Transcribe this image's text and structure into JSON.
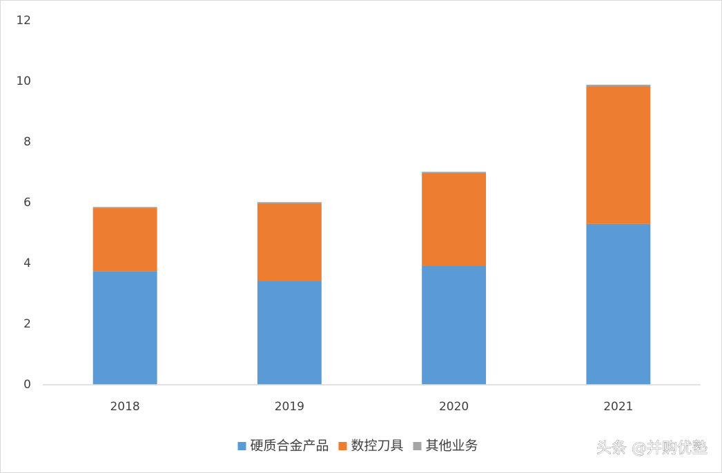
{
  "chart_data": {
    "type": "stacked_bar",
    "categories": [
      "2018",
      "2019",
      "2020",
      "2021"
    ],
    "series": [
      {
        "name": "硬质合金产品",
        "color": "#5b9bd5",
        "values": [
          3.73,
          3.43,
          3.93,
          5.3
        ]
      },
      {
        "name": "数控刀具",
        "color": "#ed7d31",
        "values": [
          2.09,
          2.55,
          3.05,
          4.54
        ]
      },
      {
        "name": "其他业务",
        "color": "#a5a5a5",
        "values": [
          0.04,
          0.04,
          0.04,
          0.05
        ]
      }
    ],
    "ylim": [
      0,
      12
    ],
    "yticks": [
      0,
      2,
      4,
      6,
      8,
      10,
      12
    ],
    "grid": false,
    "legend": "bottom",
    "watermark": "头条 @并购优塾"
  }
}
